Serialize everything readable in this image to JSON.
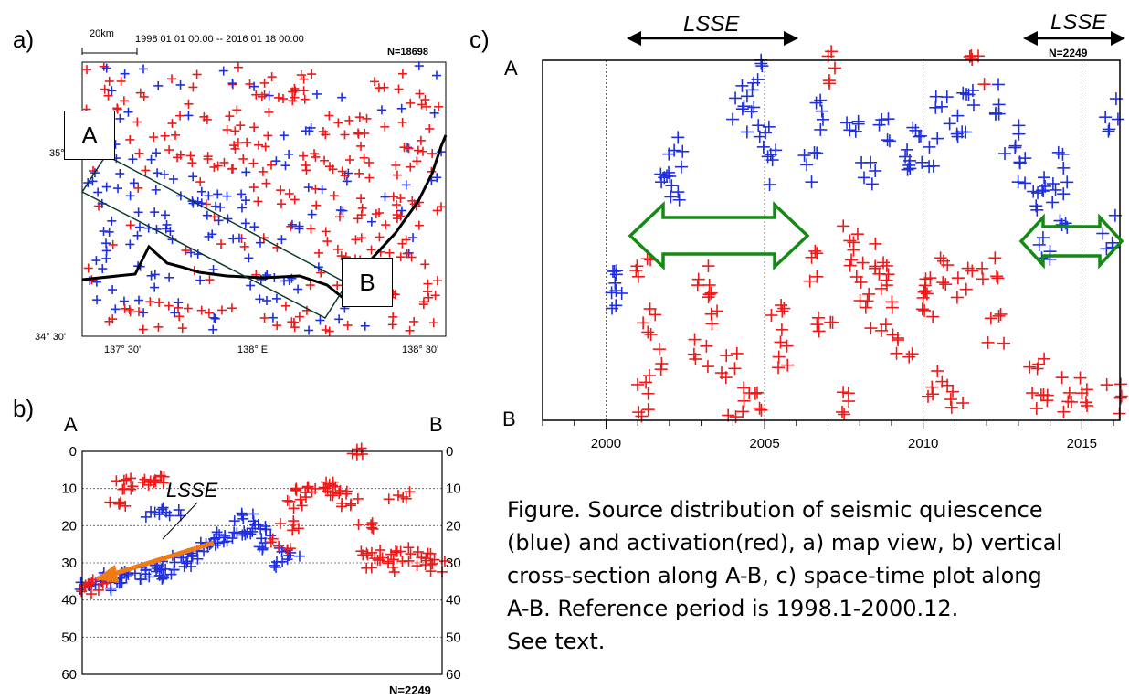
{
  "colors": {
    "quiescence": "#1f2fe0",
    "activation": "#f01818",
    "arrow_green": "#138a13",
    "arrow_orange": "#f07a16"
  },
  "panel_a": {
    "label": "a)",
    "scale": "20km",
    "period": "1998 01 01  00:00  --  2016 01 18  00:00",
    "n": "N=18698",
    "lat_labels": [
      "35°",
      "34° 30'"
    ],
    "lon_labels": [
      "137° 30'",
      "138° E",
      "138° 30'"
    ],
    "point_a": "A",
    "point_b": "B"
  },
  "panel_b": {
    "label": "b)",
    "end_a": "A",
    "end_b": "B",
    "annotation": "LSSE",
    "n": "N=2249",
    "chart_data": {
      "type": "scatter",
      "title": "",
      "xlabel": "",
      "ylabel": "",
      "ylim": [
        60,
        0
      ],
      "y_ticks": [
        0,
        10,
        20,
        30,
        40,
        50,
        60
      ],
      "grid": true,
      "series": [
        {
          "name": "",
          "color": "#1f2fe0",
          "note": "quiescence cluster dipping from A to centre",
          "points": [
            [
              0.02,
              36
            ],
            [
              0.05,
              35
            ],
            [
              0.08,
              34
            ],
            [
              0.1,
              36
            ],
            [
              0.12,
              33
            ],
            [
              0.15,
              34
            ],
            [
              0.18,
              32
            ],
            [
              0.2,
              33
            ],
            [
              0.22,
              31
            ],
            [
              0.25,
              32
            ],
            [
              0.28,
              29
            ],
            [
              0.3,
              30
            ],
            [
              0.32,
              28
            ],
            [
              0.35,
              26
            ],
            [
              0.38,
              24
            ],
            [
              0.4,
              23
            ],
            [
              0.42,
              22
            ],
            [
              0.45,
              21
            ],
            [
              0.48,
              20
            ],
            [
              0.5,
              22
            ],
            [
              0.52,
              26
            ],
            [
              0.55,
              30
            ],
            [
              0.58,
              28
            ],
            [
              0.45,
              18
            ],
            [
              0.2,
              17
            ],
            [
              0.25,
              16
            ]
          ]
        },
        {
          "name": "",
          "color": "#f01818",
          "note": "activation cluster shallow and near B",
          "points": [
            [
              0.02,
              37
            ],
            [
              0.04,
              35
            ],
            [
              0.1,
              14
            ],
            [
              0.12,
              9
            ],
            [
              0.15,
              8
            ],
            [
              0.2,
              9
            ],
            [
              0.22,
              8
            ],
            [
              0.55,
              25
            ],
            [
              0.58,
              20
            ],
            [
              0.6,
              14
            ],
            [
              0.62,
              11
            ],
            [
              0.65,
              10
            ],
            [
              0.68,
              9
            ],
            [
              0.7,
              10
            ],
            [
              0.72,
              12
            ],
            [
              0.75,
              14
            ],
            [
              0.78,
              20
            ],
            [
              0.8,
              27
            ],
            [
              0.82,
              30
            ],
            [
              0.85,
              28
            ],
            [
              0.88,
              31
            ],
            [
              0.9,
              27
            ],
            [
              0.93,
              30
            ],
            [
              0.95,
              28
            ],
            [
              0.98,
              31
            ],
            [
              0.76,
              0
            ],
            [
              0.88,
              12
            ]
          ]
        }
      ]
    }
  },
  "panel_c": {
    "label": "c)",
    "end_a": "A",
    "end_b": "B",
    "lsse_1": "LSSE",
    "lsse_2": "LSSE",
    "n": "N=2249",
    "chart_data": {
      "type": "scatter",
      "title": "",
      "xlabel": "",
      "ylabel": "",
      "xlim": [
        1998,
        2016.2
      ],
      "x_ticks": [
        2000,
        2005,
        2010,
        2015
      ],
      "y_axis": "distance along A-B (A top, B bottom)",
      "grid": true,
      "lsse_periods": [
        [
          2000.7,
          2006.0
        ],
        [
          2013.0,
          2016.2
        ]
      ],
      "series": [
        {
          "name": "",
          "color": "#1f2fe0",
          "points": [
            [
              2000.4,
              0.62
            ],
            [
              2000.4,
              0.68
            ],
            [
              2002.2,
              0.25
            ],
            [
              2002.2,
              0.35
            ],
            [
              2001.8,
              0.3
            ],
            [
              2004.2,
              0.15
            ],
            [
              2004.5,
              0.1
            ],
            [
              2004.8,
              0.05
            ],
            [
              2005.0,
              0.2
            ],
            [
              2005.3,
              0.3
            ],
            [
              2006.4,
              0.3
            ],
            [
              2006.8,
              0.15
            ],
            [
              2007.8,
              0.15
            ],
            [
              2008.3,
              0.3
            ],
            [
              2008.8,
              0.2
            ],
            [
              2009.4,
              0.3
            ],
            [
              2009.7,
              0.22
            ],
            [
              2010.2,
              0.25
            ],
            [
              2010.6,
              0.15
            ],
            [
              2011.2,
              0.2
            ],
            [
              2011.5,
              0.12
            ],
            [
              2012.4,
              0.1
            ],
            [
              2012.8,
              0.22
            ],
            [
              2013.2,
              0.3
            ],
            [
              2013.6,
              0.4
            ],
            [
              2014.0,
              0.35
            ],
            [
              2014.3,
              0.3
            ],
            [
              2013.8,
              0.52
            ],
            [
              2014.5,
              0.42
            ],
            [
              2015.8,
              0.48
            ],
            [
              2016.0,
              0.15
            ]
          ]
        },
        {
          "name": "",
          "color": "#f01818",
          "points": [
            [
              2001.2,
              0.6
            ],
            [
              2001.3,
              0.72
            ],
            [
              2001.5,
              0.85
            ],
            [
              2001.2,
              0.95
            ],
            [
              2003.1,
              0.6
            ],
            [
              2003.3,
              0.7
            ],
            [
              2003.0,
              0.82
            ],
            [
              2003.9,
              0.85
            ],
            [
              2004.1,
              0.95
            ],
            [
              2004.7,
              0.95
            ],
            [
              2005.4,
              0.72
            ],
            [
              2005.5,
              0.82
            ],
            [
              2006.6,
              0.58
            ],
            [
              2006.9,
              0.75
            ],
            [
              2007.2,
              0.02
            ],
            [
              2007.4,
              0.95
            ],
            [
              2007.7,
              0.5
            ],
            [
              2007.9,
              0.6
            ],
            [
              2008.2,
              0.7
            ],
            [
              2008.5,
              0.55
            ],
            [
              2008.7,
              0.62
            ],
            [
              2008.9,
              0.72
            ],
            [
              2009.4,
              0.8
            ],
            [
              2010.0,
              0.6
            ],
            [
              2010.2,
              0.68
            ],
            [
              2010.4,
              0.9
            ],
            [
              2010.8,
              0.58
            ],
            [
              2011.0,
              0.95
            ],
            [
              2011.3,
              0.62
            ],
            [
              2011.7,
              0.02
            ],
            [
              2012.1,
              0.58
            ],
            [
              2012.3,
              0.75
            ],
            [
              2013.6,
              0.88
            ],
            [
              2013.8,
              0.95
            ],
            [
              2014.5,
              0.93
            ],
            [
              2015.2,
              0.93
            ],
            [
              2016.0,
              0.95
            ]
          ]
        }
      ]
    }
  },
  "caption": {
    "line1": "Figure.  Source distribution of seismic quiescence",
    "line2": "(blue) and activation(red), a) map view, b) vertical",
    "line3": "cross-section along A-B, c) space-time plot along",
    "line4": "A-B. Reference period is 1998.1-2000.12.",
    "line5": "See text."
  }
}
